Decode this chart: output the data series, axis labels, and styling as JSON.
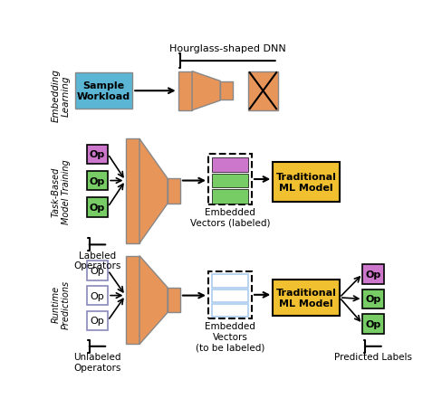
{
  "bg_color": "#ffffff",
  "orange": "#E8955A",
  "blue_box": "#5BB5D5",
  "purple": "#CC77CC",
  "green": "#77CC66",
  "yellow": "#F0C030",
  "light_blue": "#AACCEE",
  "section_labels": [
    "Embedding\nLearning",
    "Task-Based\nModel Training",
    "Runtime\nPredictions"
  ],
  "hourglass_label": "Hourglass-shaped DNN",
  "bottom_labels_left2": [
    "Labeled\nOperators",
    "Unlabeled\nOperators"
  ],
  "bottom_label_right": "Predicted Labels",
  "embedded_label1": "Embedded\nVectors (labeled)",
  "embedded_label2": "Embedded\nVectors\n(to be labeled)"
}
